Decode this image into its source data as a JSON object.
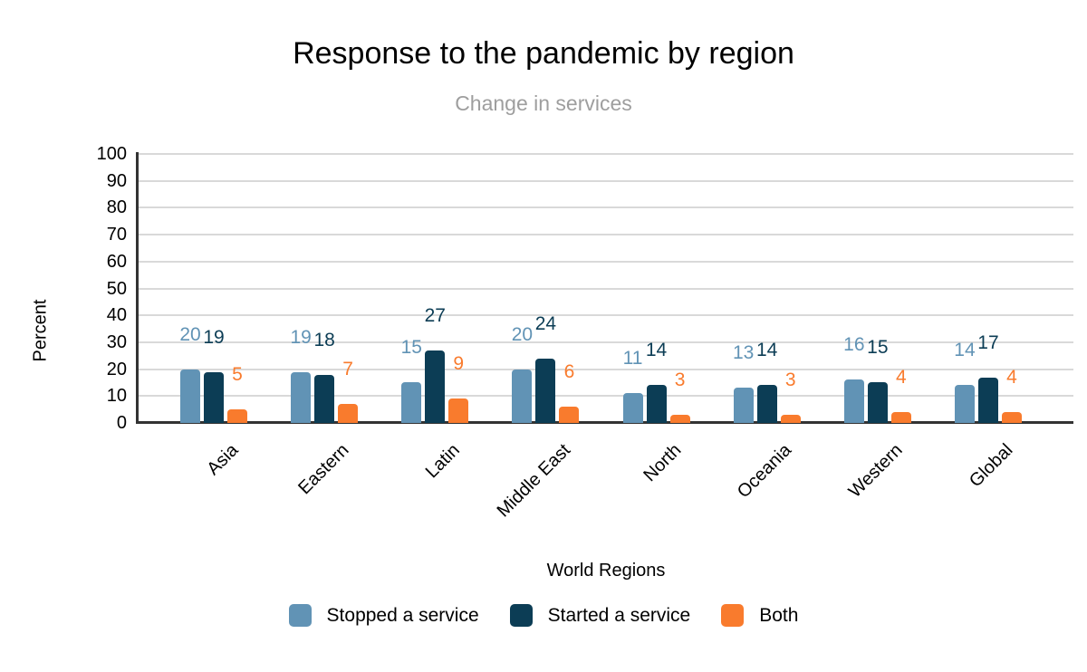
{
  "page": {
    "background": "#ffffff"
  },
  "chart_data": {
    "type": "bar",
    "title": "Response to the pandemic by region",
    "subtitle": "Change in services",
    "xlabel": "World Regions",
    "ylabel": "Percent",
    "categories": [
      "Asia",
      "Eastern",
      "Latin",
      "Middle East",
      "North",
      "Oceania",
      "Western",
      "Global"
    ],
    "series": [
      {
        "name": "Stopped a service",
        "color": "#6193B5",
        "values": [
          20,
          19,
          15,
          20,
          11,
          13,
          16,
          14
        ]
      },
      {
        "name": "Started a service",
        "color": "#0C3D55",
        "values": [
          19,
          18,
          27,
          24,
          14,
          14,
          15,
          17
        ]
      },
      {
        "name": "Both",
        "color": "#F97B2D",
        "values": [
          5,
          7,
          9,
          6,
          3,
          3,
          4,
          4
        ]
      }
    ],
    "ylim": [
      0,
      100
    ],
    "ytick_step": 10,
    "grid": true,
    "legend_position": "bottom",
    "data_labels_shown": true
  },
  "colors": {
    "grid": "#d9d9d9",
    "axis": "#333333",
    "title": "#000000",
    "subtitle": "#9e9e9e",
    "tick_label": "#000000"
  }
}
